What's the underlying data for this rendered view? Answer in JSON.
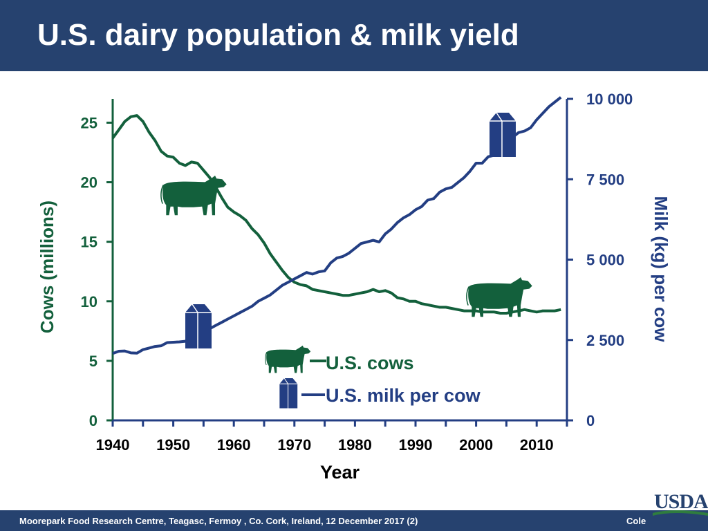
{
  "title": "U.S. dairy population & milk yield",
  "footer": {
    "text": "Moorepark Food Research Centre, Teagasc, Fermoy , Co. Cork, Ireland, 12 December 2017 (2)",
    "author": "Cole"
  },
  "logo_text": "USDA",
  "colors": {
    "title_bar": "#26426f",
    "cows": "#13603c",
    "milk": "#233e83"
  },
  "chart_data": {
    "type": "line",
    "xlabel": "Year",
    "ylabel_left": "Cows (millions)",
    "ylabel_right": "Milk (kg) per cow",
    "xlim": [
      1940,
      2015
    ],
    "ylim_left": [
      0,
      27
    ],
    "ylim_right": [
      0,
      10000
    ],
    "x_ticks": [
      "1940",
      "1950",
      "1960",
      "1970",
      "1980",
      "1990",
      "2000",
      "2010"
    ],
    "y_left_ticks": [
      "0",
      "5",
      "10",
      "15",
      "20",
      "25"
    ],
    "y_right_ticks": [
      "0",
      "2 500",
      "5 000",
      "7 500",
      "10 000"
    ],
    "legend": [
      {
        "name": "U.S. cows",
        "icon": "cow-icon"
      },
      {
        "name": "U.S. milk per cow",
        "icon": "milk-carton-icon"
      }
    ],
    "series": [
      {
        "name": "U.S. cows",
        "axis": "left",
        "x": [
          1940,
          1941,
          1942,
          1943,
          1944,
          1945,
          1946,
          1947,
          1948,
          1949,
          1950,
          1951,
          1952,
          1953,
          1954,
          1955,
          1956,
          1957,
          1958,
          1959,
          1960,
          1961,
          1962,
          1963,
          1964,
          1965,
          1966,
          1967,
          1968,
          1969,
          1970,
          1971,
          1972,
          1973,
          1974,
          1975,
          1976,
          1977,
          1978,
          1979,
          1980,
          1981,
          1982,
          1983,
          1984,
          1985,
          1986,
          1987,
          1988,
          1989,
          1990,
          1991,
          1992,
          1993,
          1994,
          1995,
          1996,
          1997,
          1998,
          1999,
          2000,
          2001,
          2002,
          2003,
          2004,
          2005,
          2006,
          2007,
          2008,
          2009,
          2010,
          2011,
          2012,
          2013,
          2014
        ],
        "values": [
          23.7,
          24.4,
          25.1,
          25.5,
          25.6,
          25.1,
          24.2,
          23.5,
          22.6,
          22.2,
          22.1,
          21.6,
          21.4,
          21.7,
          21.6,
          21.0,
          20.4,
          19.6,
          18.7,
          17.9,
          17.5,
          17.2,
          16.8,
          16.1,
          15.6,
          14.9,
          14.0,
          13.3,
          12.6,
          12.0,
          11.6,
          11.4,
          11.3,
          11.0,
          10.9,
          10.8,
          10.7,
          10.6,
          10.5,
          10.5,
          10.6,
          10.7,
          10.8,
          11.0,
          10.8,
          10.9,
          10.7,
          10.3,
          10.2,
          10.0,
          10.0,
          9.8,
          9.7,
          9.6,
          9.5,
          9.5,
          9.4,
          9.3,
          9.2,
          9.2,
          9.2,
          9.1,
          9.1,
          9.1,
          9.0,
          9.0,
          9.1,
          9.2,
          9.3,
          9.2,
          9.1,
          9.2,
          9.2,
          9.2,
          9.3
        ]
      },
      {
        "name": "U.S. milk per cow",
        "axis": "right",
        "x": [
          1940,
          1941,
          1942,
          1943,
          1944,
          1945,
          1946,
          1947,
          1948,
          1949,
          1950,
          1951,
          1952,
          1953,
          1954,
          1955,
          1956,
          1957,
          1958,
          1959,
          1960,
          1961,
          1962,
          1963,
          1964,
          1965,
          1966,
          1967,
          1968,
          1969,
          1970,
          1971,
          1972,
          1973,
          1974,
          1975,
          1976,
          1977,
          1978,
          1979,
          1980,
          1981,
          1982,
          1983,
          1984,
          1985,
          1986,
          1987,
          1988,
          1989,
          1990,
          1991,
          1992,
          1993,
          1994,
          1995,
          1996,
          1997,
          1998,
          1999,
          2000,
          2001,
          2002,
          2003,
          2004,
          2005,
          2006,
          2007,
          2008,
          2009,
          2010,
          2011,
          2012,
          2013,
          2014
        ],
        "values": [
          2080,
          2150,
          2160,
          2100,
          2090,
          2200,
          2250,
          2300,
          2320,
          2420,
          2430,
          2440,
          2460,
          2600,
          2700,
          2750,
          2850,
          2950,
          3050,
          3150,
          3250,
          3350,
          3450,
          3550,
          3700,
          3800,
          3900,
          4050,
          4200,
          4300,
          4400,
          4500,
          4600,
          4550,
          4620,
          4650,
          4900,
          5050,
          5100,
          5200,
          5350,
          5500,
          5550,
          5600,
          5550,
          5800,
          5950,
          6150,
          6300,
          6400,
          6550,
          6650,
          6850,
          6900,
          7100,
          7200,
          7250,
          7400,
          7550,
          7750,
          8000,
          8000,
          8200,
          8250,
          8350,
          8600,
          8800,
          8950,
          9000,
          9100,
          9350,
          9550,
          9750,
          9900,
          10050
        ]
      }
    ]
  }
}
